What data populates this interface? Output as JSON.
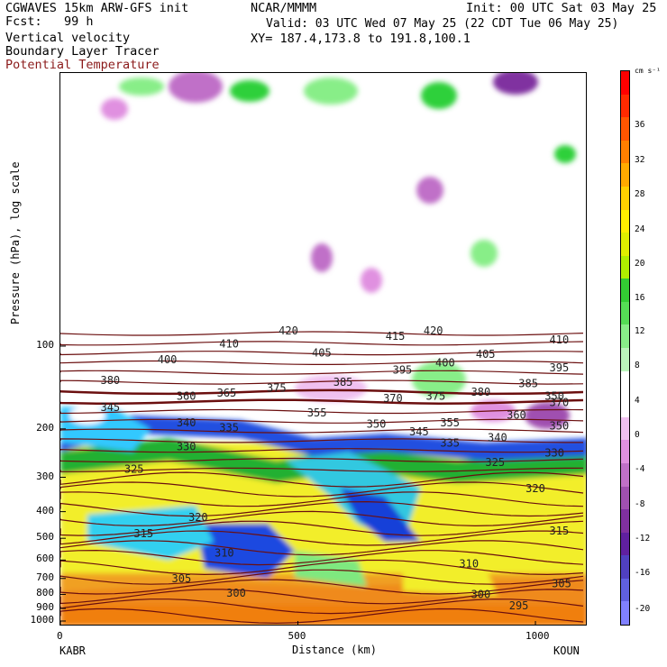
{
  "header": {
    "model": "CGWAVES 15km ARW-GFS init",
    "fcst": "Fcst:   99 h",
    "center": "NCAR/MMMM",
    "init": "Init: 00 UTC Sat 03 May 25",
    "valid": "Valid: 03 UTC Wed 07 May 25 (22 CDT Tue 06 May 25)",
    "xy": "XY= 187.4,173.8 to 191.8,100.1",
    "fields": [
      "Vertical velocity",
      "Boundary Layer Tracer",
      "Potential Temperature"
    ]
  },
  "colors": {
    "contour": "#6b0f0f",
    "text": "#000000",
    "field_label_brown": "#8b1a1a"
  },
  "chart_data": {
    "type": "heatmap",
    "title": "Vertical velocity / Boundary Layer Tracer / Potential Temperature cross section",
    "xlabel": "Distance (km)",
    "ylabel": "Pressure (hPa), log scale",
    "x_ticks": [
      0,
      500,
      1000
    ],
    "x_range": [
      0,
      1110
    ],
    "y_ticks": [
      100,
      200,
      300,
      400,
      500,
      600,
      700,
      800,
      900,
      1000
    ],
    "y_scale": "log",
    "endpoints": {
      "left": "KABR",
      "right": "KOUN"
    },
    "colorbar": {
      "units": "cm s⁻¹",
      "labels": [
        "36",
        "32",
        "28",
        "24",
        "20",
        "16",
        "12",
        "8",
        "4",
        "0",
        "-4",
        "-8",
        "-12",
        "-16",
        "-20"
      ],
      "colors": [
        "#ff0000",
        "#ff2a00",
        "#ff5500",
        "#ff7f00",
        "#ffaa00",
        "#ffd000",
        "#ffee00",
        "#e0ee00",
        "#b0ee00",
        "#33cc33",
        "#55dd55",
        "#88ee88",
        "#bbf5bb",
        "#ffffff",
        "#ffffff",
        "#f0c0f0",
        "#e090e0",
        "#c070c8",
        "#a050b0",
        "#8030a0",
        "#6020a0",
        "#5040c0",
        "#6060e0",
        "#8080ff"
      ]
    },
    "theta_labels": [
      {
        "v": "420",
        "d": 480,
        "p": 88
      },
      {
        "v": "420",
        "d": 785,
        "p": 88
      },
      {
        "v": "410",
        "d": 355,
        "p": 98
      },
      {
        "v": "415",
        "d": 705,
        "p": 92
      },
      {
        "v": "410",
        "d": 1050,
        "p": 95
      },
      {
        "v": "400",
        "d": 225,
        "p": 112
      },
      {
        "v": "405",
        "d": 550,
        "p": 106
      },
      {
        "v": "400",
        "d": 810,
        "p": 115
      },
      {
        "v": "405",
        "d": 895,
        "p": 107
      },
      {
        "v": "395",
        "d": 720,
        "p": 122
      },
      {
        "v": "395",
        "d": 1050,
        "p": 120
      },
      {
        "v": "380",
        "d": 105,
        "p": 133
      },
      {
        "v": "385",
        "d": 595,
        "p": 135
      },
      {
        "v": "385",
        "d": 985,
        "p": 137
      },
      {
        "v": "375",
        "d": 455,
        "p": 142
      },
      {
        "v": "375",
        "d": 790,
        "p": 152
      },
      {
        "v": "380",
        "d": 885,
        "p": 147
      },
      {
        "v": "360",
        "d": 265,
        "p": 152
      },
      {
        "v": "365",
        "d": 350,
        "p": 148
      },
      {
        "v": "370",
        "d": 700,
        "p": 155
      },
      {
        "v": "350",
        "d": 1040,
        "p": 152
      },
      {
        "v": "370",
        "d": 1050,
        "p": 160
      },
      {
        "v": "345",
        "d": 105,
        "p": 167
      },
      {
        "v": "355",
        "d": 540,
        "p": 175
      },
      {
        "v": "360",
        "d": 960,
        "p": 178
      },
      {
        "v": "340",
        "d": 265,
        "p": 190
      },
      {
        "v": "335",
        "d": 355,
        "p": 198
      },
      {
        "v": "350",
        "d": 665,
        "p": 192
      },
      {
        "v": "355",
        "d": 820,
        "p": 190
      },
      {
        "v": "350",
        "d": 1050,
        "p": 195
      },
      {
        "v": "345",
        "d": 755,
        "p": 205
      },
      {
        "v": "340",
        "d": 920,
        "p": 215
      },
      {
        "v": "335",
        "d": 820,
        "p": 225
      },
      {
        "v": "330",
        "d": 265,
        "p": 232
      },
      {
        "v": "330",
        "d": 1040,
        "p": 245
      },
      {
        "v": "325",
        "d": 155,
        "p": 280
      },
      {
        "v": "325",
        "d": 915,
        "p": 265
      },
      {
        "v": "320",
        "d": 1000,
        "p": 330
      },
      {
        "v": "320",
        "d": 290,
        "p": 420
      },
      {
        "v": "315",
        "d": 175,
        "p": 480
      },
      {
        "v": "315",
        "d": 1050,
        "p": 470
      },
      {
        "v": "310",
        "d": 345,
        "p": 565
      },
      {
        "v": "310",
        "d": 860,
        "p": 620
      },
      {
        "v": "305",
        "d": 255,
        "p": 700
      },
      {
        "v": "305",
        "d": 1055,
        "p": 730
      },
      {
        "v": "300",
        "d": 370,
        "p": 790
      },
      {
        "v": "300",
        "d": 885,
        "p": 800
      },
      {
        "v": "295",
        "d": 965,
        "p": 880
      }
    ]
  }
}
